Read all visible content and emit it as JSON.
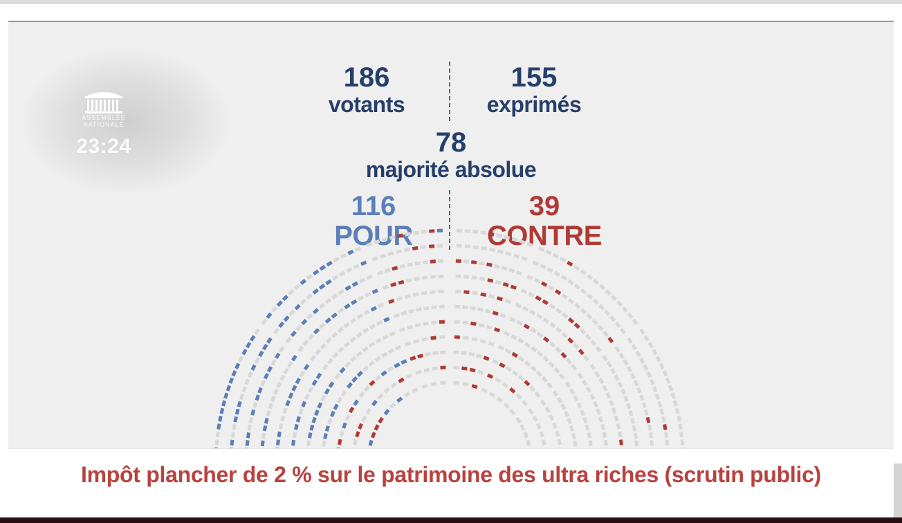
{
  "logo": {
    "line1": "ASSEMBLÉE",
    "line2": "NATIONALE",
    "clock": "23:24"
  },
  "stats": {
    "votants": {
      "value": "186",
      "label": "votants"
    },
    "exprimes": {
      "value": "155",
      "label": "exprimés"
    },
    "majorite": {
      "value": "78",
      "label": "majorité absolue"
    },
    "pour": {
      "value": "116",
      "label": "POUR"
    },
    "contre": {
      "value": "39",
      "label": "CONTRE"
    }
  },
  "colors": {
    "pour": "#5b7fb8",
    "contre": "#b03a35",
    "absent": "#d8d8d8",
    "heading": "#263f6a",
    "caption": "#b8423e"
  },
  "caption": "Impôt plancher de 2 % sur le patrimoine des ultra riches (scrutin public)"
}
